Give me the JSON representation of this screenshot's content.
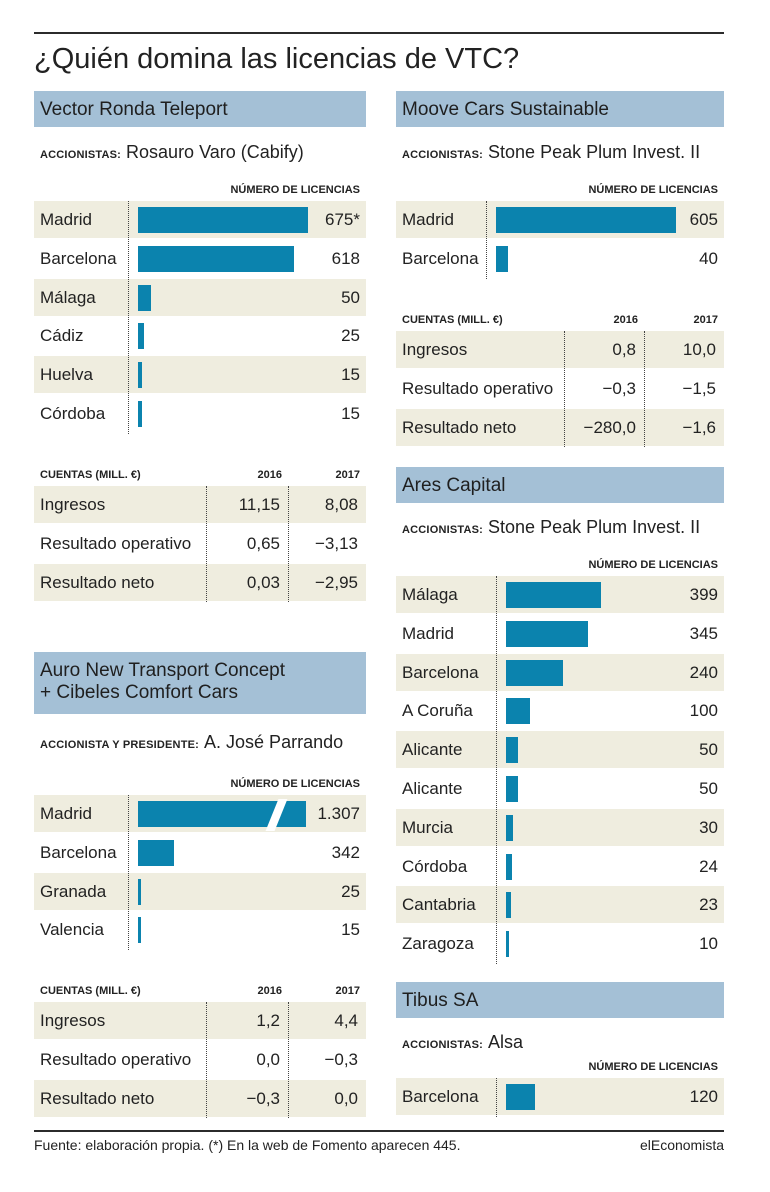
{
  "title": "¿Quién domina las licencias de VTC?",
  "licenses_header": "NÚMERO DE LICENCIAS",
  "accounts_header": {
    "label": "CUENTAS (MILL. €)",
    "y2016": "2016",
    "y2017": "2017"
  },
  "accounts_rows": [
    "Ingresos",
    "Resultado operativo",
    "Resultado neto"
  ],
  "footer": {
    "source": "Fuente: elaboración propia. (*) En la web de Fomento aparecen 445.",
    "brand": "elEconomista"
  },
  "colors": {
    "bar": "#0b83ae",
    "header_bg": "#a4c0d6",
    "row_shade": "#efeddf"
  },
  "companies": [
    {
      "name": "Vector Ronda Teleport",
      "holders_label": "ACCIONISTAS:",
      "holders": "Rosauro Varo (Cabify)",
      "licenses": [
        {
          "city": "Madrid",
          "value": "675*"
        },
        {
          "city": "Barcelona",
          "value": "618"
        },
        {
          "city": "Málaga",
          "value": "50"
        },
        {
          "city": "Cádiz",
          "value": "25"
        },
        {
          "city": "Huelva",
          "value": "15"
        },
        {
          "city": "Córdoba",
          "value": "15"
        }
      ],
      "accounts": {
        "y2016": [
          "11,15",
          "0,65",
          "0,03"
        ],
        "y2017": [
          "8,08",
          "−3,13",
          "−2,95"
        ]
      }
    },
    {
      "name": "Auro New Transport Concept + Cibeles Comfort Cars",
      "name_line1": "Auro New Transport Concept",
      "name_line2": "+ Cibeles Comfort Cars",
      "holders_label": "ACCIONISTA Y PRESIDENTE:",
      "holders": "A. José Parrando",
      "licenses": [
        {
          "city": "Madrid",
          "value": "1.307"
        },
        {
          "city": "Barcelona",
          "value": "342"
        },
        {
          "city": "Granada",
          "value": "25"
        },
        {
          "city": "Valencia",
          "value": "15"
        }
      ],
      "accounts": {
        "y2016": [
          "1,2",
          "0,0",
          "−0,3"
        ],
        "y2017": [
          "4,4",
          "−0,3",
          "0,0"
        ]
      }
    },
    {
      "name": "Moove Cars Sustainable",
      "holders_label": "ACCIONISTAS:",
      "holders": "Stone Peak Plum Invest. II",
      "licenses": [
        {
          "city": "Madrid",
          "value": "605"
        },
        {
          "city": "Barcelona",
          "value": "40"
        }
      ],
      "accounts": {
        "y2016": [
          "0,8",
          "−0,3",
          "−280,0"
        ],
        "y2017": [
          "10,0",
          "−1,5",
          "−1,6"
        ]
      }
    },
    {
      "name": "Ares Capital",
      "holders_label": "ACCIONISTAS:",
      "holders": "Stone Peak Plum Invest. II",
      "licenses": [
        {
          "city": "Málaga",
          "value": "399"
        },
        {
          "city": "Madrid",
          "value": "345"
        },
        {
          "city": "Barcelona",
          "value": "240"
        },
        {
          "city": "A Coruña",
          "value": "100"
        },
        {
          "city": "Alicante",
          "value": "50"
        },
        {
          "city": "Alicante",
          "value": "50"
        },
        {
          "city": "Murcia",
          "value": "30"
        },
        {
          "city": "Córdoba",
          "value": "24"
        },
        {
          "city": "Cantabria",
          "value": "23"
        },
        {
          "city": "Zaragoza",
          "value": "10"
        }
      ]
    },
    {
      "name": "Tibus SA",
      "holders_label": "ACCIONISTAS:",
      "holders": "Alsa",
      "licenses": [
        {
          "city": "Barcelona",
          "value": "120"
        }
      ]
    }
  ],
  "chart_data": [
    {
      "type": "bar",
      "title": "Vector Ronda Teleport",
      "categories": [
        "Madrid",
        "Barcelona",
        "Málaga",
        "Cádiz",
        "Huelva",
        "Córdoba"
      ],
      "values": [
        675,
        618,
        50,
        25,
        15,
        15
      ]
    },
    {
      "type": "bar",
      "title": "Auro New Transport Concept + Cibeles Comfort Cars",
      "categories": [
        "Madrid",
        "Barcelona",
        "Granada",
        "Valencia"
      ],
      "values": [
        1307,
        342,
        25,
        15
      ],
      "axis_break": true
    },
    {
      "type": "bar",
      "title": "Moove Cars Sustainable",
      "categories": [
        "Madrid",
        "Barcelona"
      ],
      "values": [
        605,
        40
      ]
    },
    {
      "type": "bar",
      "title": "Ares Capital",
      "categories": [
        "Málaga",
        "Madrid",
        "Barcelona",
        "A Coruña",
        "Alicante",
        "Alicante",
        "Murcia",
        "Córdoba",
        "Cantabria",
        "Zaragoza"
      ],
      "values": [
        399,
        345,
        240,
        100,
        50,
        50,
        30,
        24,
        23,
        10
      ]
    },
    {
      "type": "bar",
      "title": "Tibus SA",
      "categories": [
        "Barcelona"
      ],
      "values": [
        120
      ]
    },
    {
      "type": "table",
      "title": "Vector Ronda Teleport",
      "columns": [
        "CUENTAS (MILL. €)",
        "2016",
        "2017"
      ],
      "rows": [
        [
          "Ingresos",
          "11,15",
          "8,08"
        ],
        [
          "Resultado operativo",
          "0,65",
          "−3,13"
        ],
        [
          "Resultado neto",
          "0,03",
          "−2,95"
        ]
      ]
    },
    {
      "type": "table",
      "title": "Auro New Transport Concept + Cibeles Comfort Cars",
      "columns": [
        "CUENTAS (MILL. €)",
        "2016",
        "2017"
      ],
      "rows": [
        [
          "Ingresos",
          "1,2",
          "4,4"
        ],
        [
          "Resultado operativo",
          "0,0",
          "−0,3"
        ],
        [
          "Resultado neto",
          "−0,3",
          "0,0"
        ]
      ]
    },
    {
      "type": "table",
      "title": "Moove Cars Sustainable",
      "columns": [
        "CUENTAS (MILL. €)",
        "2016",
        "2017"
      ],
      "rows": [
        [
          "Ingresos",
          "0,8",
          "10,0"
        ],
        [
          "Resultado operativo",
          "−0,3",
          "−1,5"
        ],
        [
          "Resultado neto",
          "−280,0",
          "−1,6"
        ]
      ]
    }
  ]
}
